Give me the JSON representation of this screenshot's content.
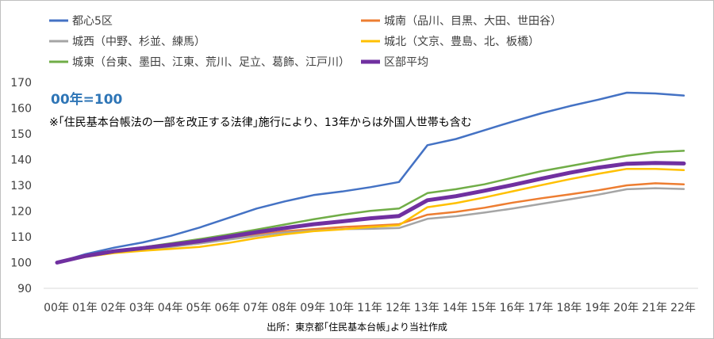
{
  "chart_data": {
    "type": "line",
    "subtitle": "00年=100",
    "note": "※｢住民基本台帳法の一部を改正する法律｣施行により、13年からは外国人世帯も含む",
    "source": "出所：東京都｢住民基本台帳｣より当社作成",
    "x": [
      "00年",
      "01年",
      "02年",
      "03年",
      "04年",
      "05年",
      "06年",
      "07年",
      "08年",
      "09年",
      "10年",
      "11年",
      "12年",
      "13年",
      "14年",
      "15年",
      "16年",
      "17年",
      "18年",
      "19年",
      "20年",
      "21年",
      "22年"
    ],
    "ylim": [
      90,
      170
    ],
    "yticks": [
      90,
      100,
      110,
      120,
      130,
      140,
      150,
      160,
      170
    ],
    "grid": false,
    "legend_position": "top",
    "series": [
      {
        "name": "都心5区",
        "color": "#4472c4",
        "width": 2.5,
        "values": [
          100,
          103.3,
          105.8,
          107.8,
          110.4,
          113.6,
          117.3,
          121.0,
          123.8,
          126.2,
          127.6,
          129.3,
          131.3,
          145.6,
          148.0,
          151.4,
          154.8,
          158.0,
          160.8,
          163.3,
          166.0,
          165.7,
          164.9
        ]
      },
      {
        "name": "城南（品川、目黒、大田、世田谷）",
        "color": "#ed7d31",
        "width": 2.5,
        "values": [
          100,
          102.5,
          104.0,
          105.2,
          106.3,
          107.4,
          109.0,
          110.8,
          112.2,
          113.0,
          113.8,
          114.3,
          114.9,
          118.6,
          119.7,
          121.3,
          123.3,
          125.0,
          126.5,
          128.1,
          130.0,
          130.8,
          130.4
        ]
      },
      {
        "name": "城西（中野、杉並、練馬）",
        "color": "#a5a5a5",
        "width": 2.5,
        "values": [
          100,
          102.3,
          103.8,
          104.9,
          106.1,
          107.4,
          108.9,
          110.4,
          111.7,
          112.4,
          113.0,
          113.1,
          113.4,
          117.0,
          118.0,
          119.4,
          121.0,
          122.8,
          124.6,
          126.4,
          128.5,
          128.9,
          128.6
        ]
      },
      {
        "name": "城北（文京、豊島、北、板橋）",
        "color": "#ffc000",
        "width": 2.5,
        "values": [
          100,
          102.2,
          103.7,
          104.6,
          105.3,
          106.1,
          107.6,
          109.5,
          111.0,
          112.2,
          112.9,
          113.8,
          114.5,
          121.5,
          123.1,
          125.3,
          127.7,
          130.1,
          132.4,
          134.5,
          136.4,
          136.4,
          135.9
        ]
      },
      {
        "name": "城東（台東、墨田、江東、荒川、足立、葛飾、江戸川）",
        "color": "#70ad47",
        "width": 2.5,
        "values": [
          100,
          102.8,
          104.5,
          105.9,
          107.5,
          109.1,
          110.9,
          112.8,
          114.8,
          116.8,
          118.6,
          120.1,
          121.0,
          127.0,
          128.5,
          130.4,
          133.0,
          135.5,
          137.5,
          139.5,
          141.5,
          142.9,
          143.4
        ]
      },
      {
        "name": "区部平均",
        "color": "#7030a0",
        "width": 5,
        "values": [
          100,
          102.6,
          104.4,
          105.6,
          106.9,
          108.3,
          110.0,
          111.8,
          113.4,
          114.9,
          116.0,
          117.2,
          118.1,
          124.2,
          125.8,
          127.9,
          130.2,
          132.6,
          134.9,
          136.9,
          138.4,
          138.7,
          138.5
        ]
      }
    ]
  }
}
